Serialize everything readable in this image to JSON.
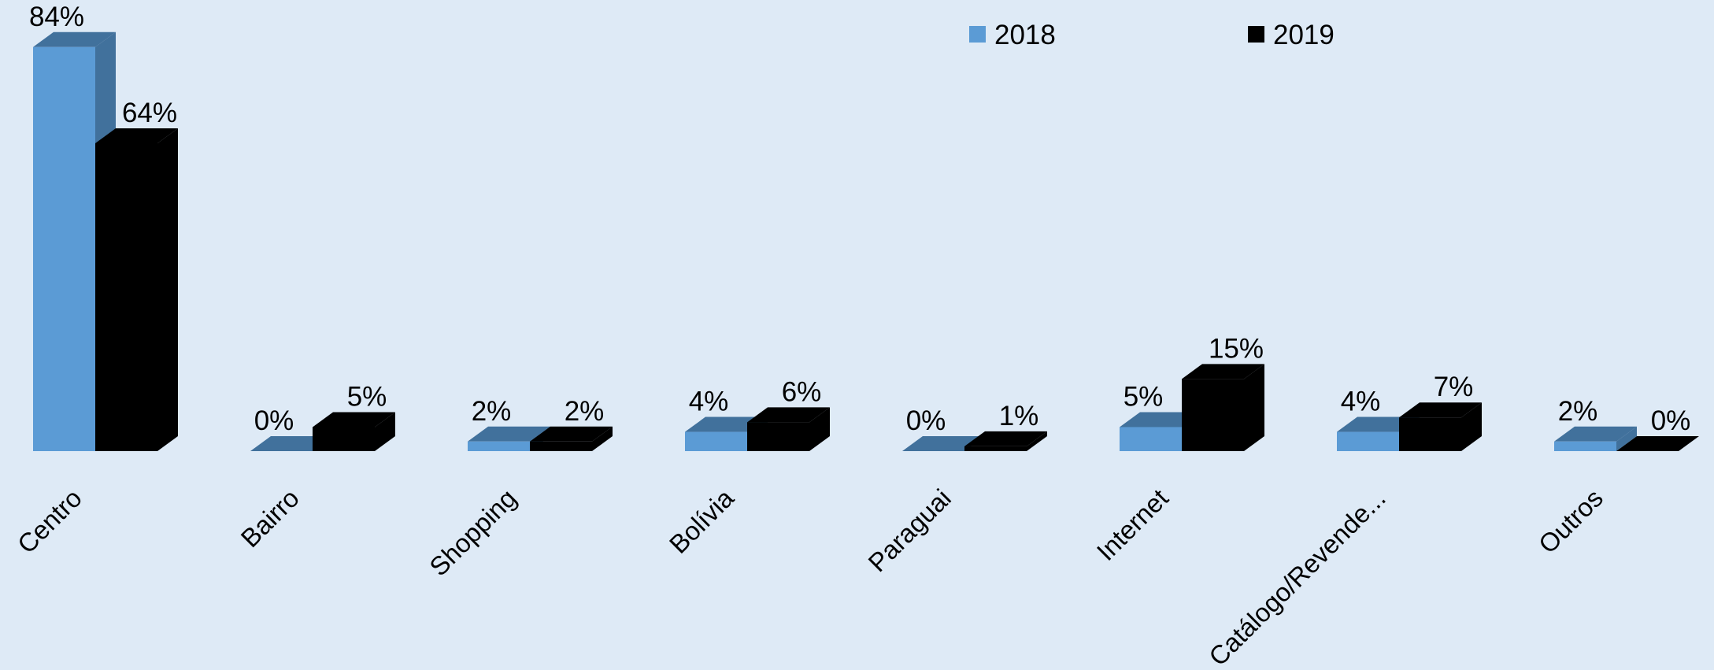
{
  "chart_data": {
    "type": "bar3d",
    "categories": [
      "Centro",
      "Bairro",
      "Shopping",
      "Bolívia",
      "Paraguai",
      "Internet",
      "Catálogo/Revende...",
      "Outros"
    ],
    "series": [
      {
        "name": "2018",
        "color": "#5b9bd5",
        "values": [
          84,
          0,
          2,
          4,
          0,
          5,
          4,
          2
        ],
        "value_labels": [
          "84%",
          "0%",
          "2%",
          "4%",
          "0%",
          "5%",
          "4%",
          "2%"
        ]
      },
      {
        "name": "2019",
        "color": "#000000",
        "values": [
          64,
          5,
          2,
          6,
          1,
          15,
          7,
          0
        ],
        "value_labels": [
          "64%",
          "5%",
          "2%",
          "6%",
          "1%",
          "15%",
          "7%",
          "0%"
        ]
      }
    ],
    "legend": "top"
  }
}
